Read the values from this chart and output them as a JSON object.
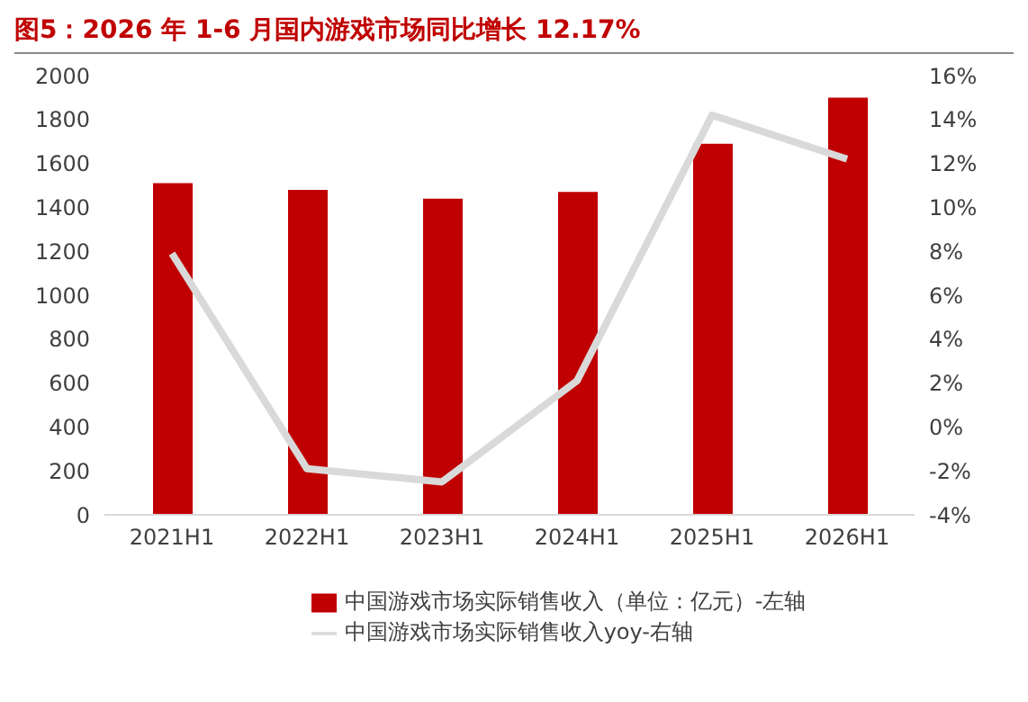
{
  "chart_data": {
    "type": "bar",
    "title": "图5：2026 年 1-6 月国内游戏市场同比增长 12.17%",
    "categories": [
      "2021H1",
      "2022H1",
      "2023H1",
      "2024H1",
      "2025H1",
      "2026H1"
    ],
    "series": [
      {
        "name": "中国游戏市场实际销售收入（单位：亿元）-左轴",
        "color": "#c00000",
        "values": [
          1510,
          1480,
          1440,
          1470,
          1690,
          1900
        ]
      },
      {
        "name": "中国游戏市场实际销售收入yoy-右轴",
        "type": "line",
        "axis": "y2",
        "color": "#d9d9d9",
        "values": [
          7.9,
          -1.9,
          -2.5,
          2.1,
          14.2,
          12.2
        ]
      }
    ],
    "ylim": [
      0,
      2000
    ],
    "yticks": [
      0,
      200,
      400,
      600,
      800,
      1000,
      1200,
      1400,
      1600,
      1800,
      2000
    ],
    "y2lim": [
      -4,
      16
    ],
    "y2ticks": [
      {
        "value": -4,
        "label": "-4%"
      },
      {
        "value": -2,
        "label": "-2%"
      },
      {
        "value": 0,
        "label": "0%"
      },
      {
        "value": 2,
        "label": "2%"
      },
      {
        "value": 4,
        "label": "4%"
      },
      {
        "value": 6,
        "label": "6%"
      },
      {
        "value": 8,
        "label": "8%"
      },
      {
        "value": 10,
        "label": "10%"
      },
      {
        "value": 12,
        "label": "12%"
      },
      {
        "value": 14,
        "label": "14%"
      },
      {
        "value": 16,
        "label": "16%"
      }
    ],
    "grid": false,
    "legend": "bottom",
    "marker": "none",
    "line_style": "solid"
  }
}
